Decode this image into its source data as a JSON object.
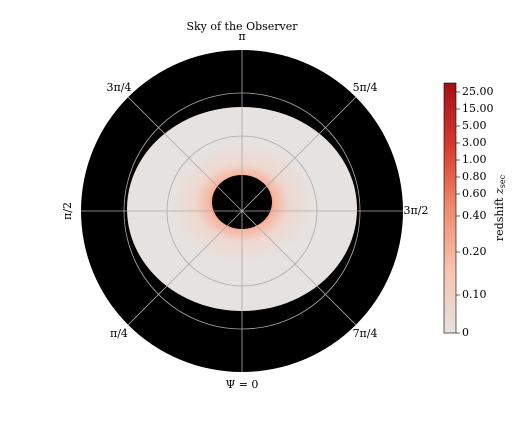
{
  "chart_data": {
    "type": "polar-image",
    "title": "Sky of the Observer",
    "angle_labels": [
      "Ψ = 0",
      "π/4",
      "π/2",
      "3π/4",
      "π",
      "5π/4",
      "3π/2",
      "7π/4"
    ],
    "colorbar_label": "redshift",
    "colorbar_symbol": "z",
    "colorbar_symbol_sub": "sec",
    "colorbar_ticks": [
      0,
      0.1,
      0.2,
      0.4,
      0.6,
      0.8,
      1,
      3,
      5,
      15,
      25
    ],
    "colorbar_tick_labels": [
      "0",
      "0.10",
      "0.20",
      "0.40",
      "0.60",
      "0.80",
      "1.00",
      "3.00",
      "5.00",
      "15.00",
      "25.00"
    ],
    "colormap": [
      "#e6e2e0",
      "#f7c4b0",
      "#f08a6e",
      "#d63a2f",
      "#a50f15"
    ]
  }
}
